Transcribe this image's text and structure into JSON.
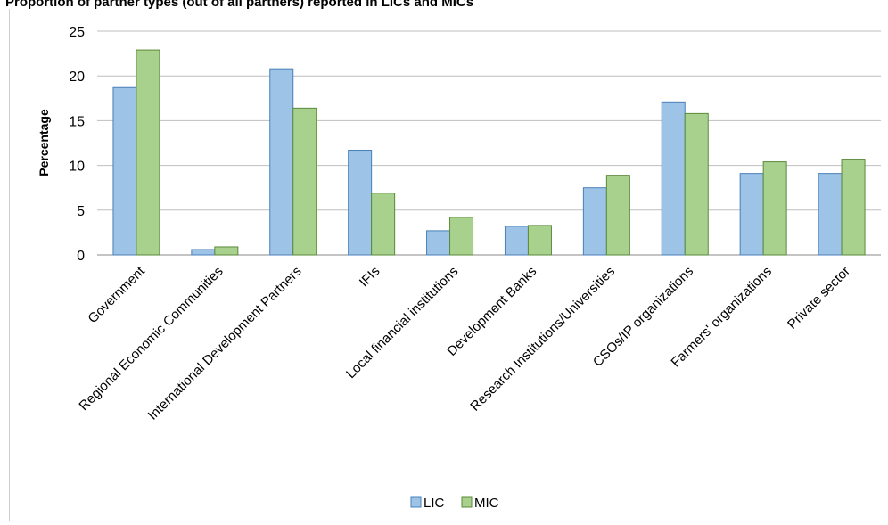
{
  "chart_data": {
    "type": "bar",
    "title": "Proportion of partner types (out of all partners) reported in LICs and MICs",
    "xlabel": "",
    "ylabel": "Percentage",
    "ylim": [
      0,
      25
    ],
    "yticks": [
      0,
      5,
      10,
      15,
      20,
      25
    ],
    "grid": true,
    "legend_position": "bottom",
    "categories": [
      "Government",
      "Regional Economic Communities",
      "International Development Partners",
      "IFIs",
      "Local financial institutions",
      "Development Banks",
      "Research Institutions/Universities",
      "CSOs/IP organizations",
      "Farmers' organizations",
      "Private sector"
    ],
    "series": [
      {
        "name": "LIC",
        "color": "#9dc3e6",
        "values": [
          18.7,
          0.6,
          20.8,
          11.7,
          2.7,
          3.2,
          7.5,
          17.1,
          9.1,
          9.1
        ]
      },
      {
        "name": "MIC",
        "color": "#a9d18e",
        "values": [
          22.9,
          0.9,
          16.4,
          6.9,
          4.2,
          3.3,
          8.9,
          15.8,
          10.4,
          10.7
        ]
      }
    ]
  }
}
